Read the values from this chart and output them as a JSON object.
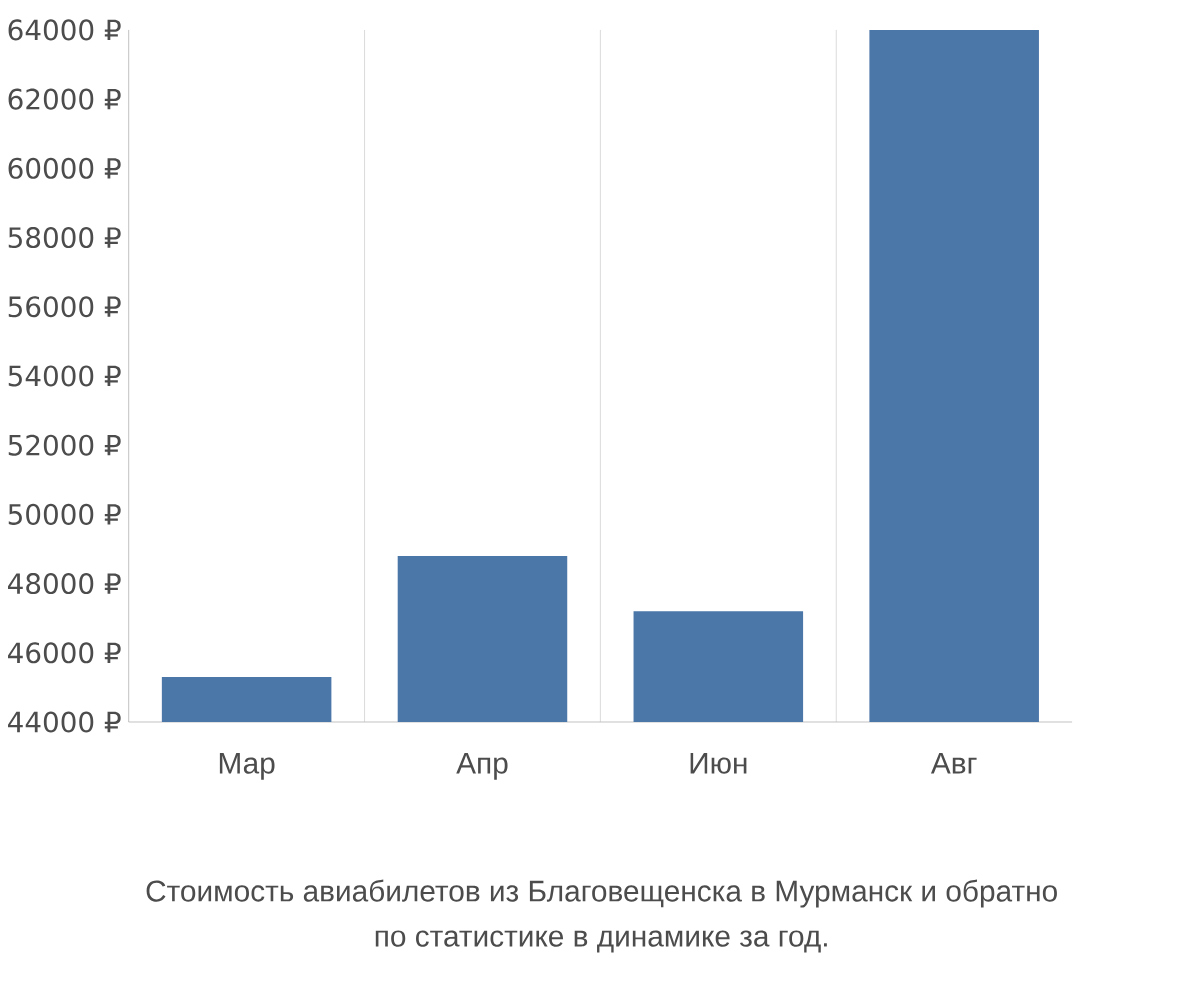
{
  "chart_data": {
    "type": "bar",
    "categories": [
      "Мар",
      "Апр",
      "Июн",
      "Авг"
    ],
    "values": [
      45300,
      48800,
      47200,
      64000
    ],
    "color": "#4a76a8",
    "ylim": [
      44000,
      64000
    ],
    "yticks": [
      {
        "value": 44000,
        "label": "44000 ₽"
      },
      {
        "value": 46000,
        "label": "46000 ₽"
      },
      {
        "value": 48000,
        "label": "48000 ₽"
      },
      {
        "value": 50000,
        "label": "50000 ₽"
      },
      {
        "value": 52000,
        "label": "52000 ₽"
      },
      {
        "value": 54000,
        "label": "54000 ₽"
      },
      {
        "value": 56000,
        "label": "56000 ₽"
      },
      {
        "value": 58000,
        "label": "58000 ₽"
      },
      {
        "value": 60000,
        "label": "60000 ₽"
      },
      {
        "value": 62000,
        "label": "62000 ₽"
      },
      {
        "value": 64000,
        "label": "64000 ₽"
      }
    ],
    "grid": "x",
    "annotations": [
      "Стоимость авиабилетов из Благовещенска в Мурманск и обратно",
      "по статистике в динамике за год."
    ]
  }
}
